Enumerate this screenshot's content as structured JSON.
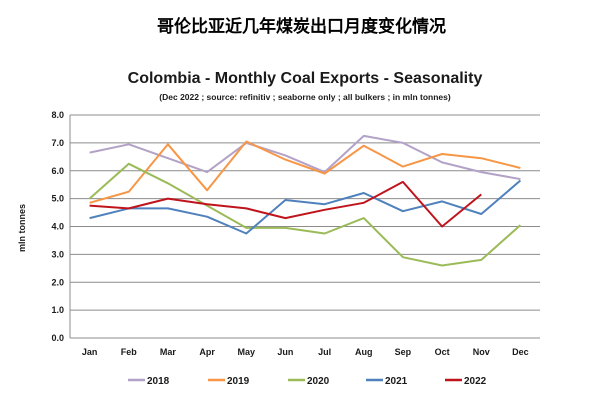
{
  "header": {
    "title": "哥伦比亚近几年煤炭出口月度变化情况"
  },
  "chart_data": {
    "type": "line",
    "title": "Colombia - Monthly Coal Exports - Seasonality",
    "subtitle": "(Dec 2022 ; source: refinitiv ; seaborne only ; all bulkers ; in mln tonnes)",
    "xlabel": "",
    "ylabel": "mln tonnes",
    "categories": [
      "Jan",
      "Feb",
      "Mar",
      "Apr",
      "May",
      "Jun",
      "Jul",
      "Aug",
      "Sep",
      "Oct",
      "Nov",
      "Dec"
    ],
    "ylim": [
      0,
      8
    ],
    "yticks": [
      "0.0",
      "1.0",
      "2.0",
      "3.0",
      "4.0",
      "5.0",
      "6.0",
      "7.0",
      "8.0"
    ],
    "grid": "horizontal",
    "legend": "bottom",
    "series": [
      {
        "name": "2018",
        "color": "#b3a2c7",
        "values": [
          6.65,
          6.95,
          6.45,
          5.95,
          7.0,
          6.55,
          5.95,
          7.25,
          7.0,
          6.3,
          5.95,
          5.7
        ]
      },
      {
        "name": "2019",
        "color": "#f79646",
        "values": [
          4.85,
          5.25,
          6.95,
          5.3,
          7.05,
          6.4,
          5.9,
          6.9,
          6.15,
          6.6,
          6.45,
          6.1
        ]
      },
      {
        "name": "2020",
        "color": "#9bbb59",
        "values": [
          5.0,
          6.25,
          5.55,
          4.75,
          3.95,
          3.95,
          3.75,
          4.3,
          2.9,
          2.6,
          2.8,
          4.05
        ]
      },
      {
        "name": "2021",
        "color": "#4f81bd",
        "values": [
          4.3,
          4.65,
          4.65,
          4.35,
          3.75,
          4.95,
          4.8,
          5.2,
          4.55,
          4.9,
          4.45,
          5.65
        ]
      },
      {
        "name": "2022",
        "color": "#c0141c",
        "values": [
          4.75,
          4.65,
          5.0,
          4.8,
          4.65,
          4.3,
          4.6,
          4.85,
          5.6,
          4.0,
          5.15,
          null
        ]
      }
    ]
  }
}
